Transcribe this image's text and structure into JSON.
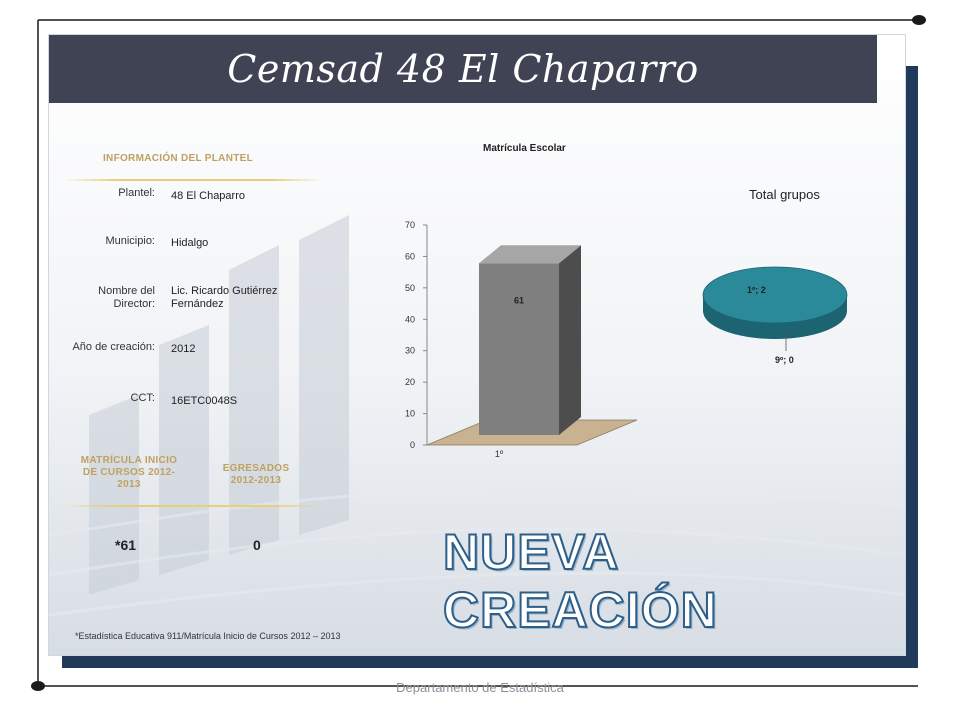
{
  "header": {
    "title": "Cemsad 48 El Chaparro"
  },
  "info": {
    "section_title": "INFORMACIÓN DEL PLANTEL",
    "rows": [
      {
        "label": "Plantel:",
        "value": "48 El Chaparro"
      },
      {
        "label": "Municipio:",
        "value": "Hidalgo"
      },
      {
        "label": "Nombre del Director:",
        "value": "Lic. Ricardo Gutiérrez Fernández"
      },
      {
        "label": "Año de creación:",
        "value": "2012"
      },
      {
        "label": "CCT:",
        "value": "16ETC0048S"
      }
    ]
  },
  "stats": {
    "matricula_title": "MATRÍCULA INICIO DE CURSOS 2012-2013",
    "egresados_title": "EGRESADOS 2012-2013",
    "matricula_value": "*61",
    "egresados_value": "0"
  },
  "stamp_text": "NUEVA CREACIÓN",
  "footnote": "*Estadística Educativa 911/Matrícula Inicio de Cursos 2012 – 2013",
  "footer": "Departamento de Estadística",
  "colors": {
    "title_band": "#3f4353",
    "frame_shadow": "#1f3a5a",
    "bar": "#7f7f7f",
    "pie": "#2a8a9a",
    "accent_gold": "#c0a060"
  },
  "chart_data": [
    {
      "type": "bar",
      "title": "Matrícula Escolar",
      "categories": [
        "1º"
      ],
      "values": [
        61
      ],
      "data_labels": [
        "61"
      ],
      "ylim": [
        0,
        70
      ],
      "yticks": [
        0,
        10,
        20,
        30,
        40,
        50,
        60,
        70
      ],
      "grid": false
    },
    {
      "type": "pie",
      "title": "Total grupos",
      "slices": [
        {
          "label": "1º; 2",
          "value": 2
        },
        {
          "label": "9º; 0",
          "value": 0
        }
      ]
    }
  ]
}
